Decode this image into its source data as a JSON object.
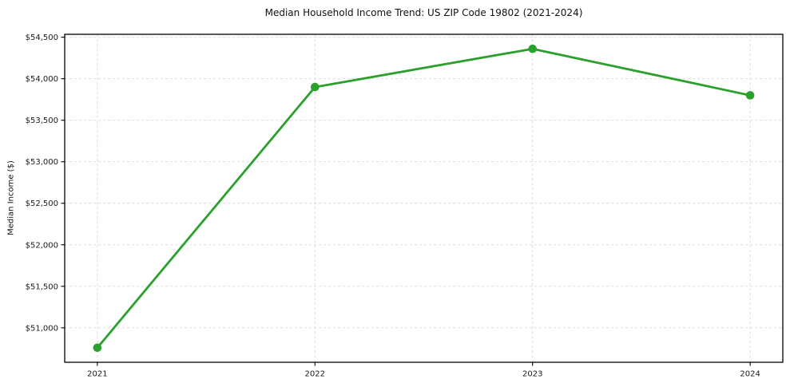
{
  "chart_data": {
    "type": "line",
    "title": "Median Household Income Trend: US ZIP Code 19802 (2021-2024)",
    "xlabel": "",
    "ylabel": "Median Income ($)",
    "x": [
      2021,
      2022,
      2023,
      2024
    ],
    "xtick_labels": [
      "2021",
      "2022",
      "2023",
      "2024"
    ],
    "values": [
      50760,
      53900,
      54360,
      53800
    ],
    "yticks": [
      51000,
      51500,
      52000,
      52500,
      53000,
      53500,
      54000,
      54500
    ],
    "ytick_labels": [
      "$51,000",
      "$51,500",
      "$52,000",
      "$52,500",
      "$53,000",
      "$53,500",
      "$54,000",
      "$54,500"
    ],
    "ylim": [
      50585,
      54535
    ],
    "xlim": [
      2020.85,
      2024.15
    ],
    "grid": true,
    "legend": "none",
    "colors": {
      "line": "#2ca02c",
      "marker": "#2ca02c",
      "grid": "#d9d9d9",
      "axis": "#000000",
      "text": "#1a1a1a",
      "background": "#ffffff"
    }
  }
}
